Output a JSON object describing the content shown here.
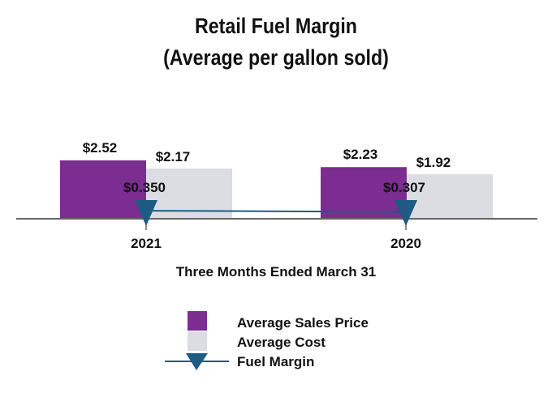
{
  "chart_data": {
    "type": "bar",
    "title": "Retail Fuel Margin",
    "subtitle": "(Average per gallon sold)",
    "xlabel": "Three Months Ended March 31",
    "ylabel": "",
    "categories": [
      "2021",
      "2020"
    ],
    "series": [
      {
        "name": "Average Sales Price",
        "kind": "bar",
        "color": "#7b2d91",
        "values": [
          2.52,
          2.23
        ],
        "labels": [
          "$2.52",
          "$2.23"
        ]
      },
      {
        "name": "Average Cost",
        "kind": "bar",
        "color": "#dcdde2",
        "values": [
          2.17,
          1.92
        ],
        "labels": [
          "$2.17",
          "$1.92"
        ]
      },
      {
        "name": "Fuel Margin",
        "kind": "line",
        "marker": "triangle-down",
        "color": "#1d5b83",
        "values": [
          0.35,
          0.307
        ],
        "labels": [
          "$0.350",
          "$0.307"
        ]
      }
    ],
    "legend_position": "bottom"
  }
}
